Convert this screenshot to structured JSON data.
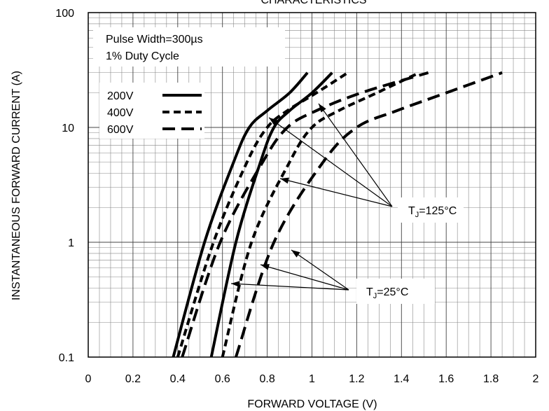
{
  "chart_data": {
    "type": "line",
    "title": "CHARACTERISTICS",
    "xlabel": "FORWARD VOLTAGE (V)",
    "ylabel": "INSTANTANEOUS FORWARD CURRENT (A)",
    "xlim": [
      0,
      2
    ],
    "ylim": [
      0.1,
      100
    ],
    "y_scale": "log",
    "grid": true,
    "x_ticks": [
      "0",
      "0.2",
      "0.4",
      "0.6",
      "0.8",
      "1",
      "1.2",
      "1.4",
      "1.6",
      "1.8",
      "2"
    ],
    "y_ticks": [
      "0.1",
      "1",
      "10",
      "100"
    ],
    "legend_position": "top-left",
    "annotations": {
      "pulse_width": "Pulse Width=300µs",
      "duty_cycle": "1% Duty Cycle",
      "tj_high": "=125°C",
      "tj_low": "=25°C",
      "tj_symbol": "T",
      "tj_subscript": "J"
    },
    "series": [
      {
        "name": "200V",
        "style": "solid",
        "condition": "TJ=125°C",
        "x": [
          0.38,
          0.52,
          0.65,
          0.72,
          0.8,
          0.9,
          0.98
        ],
        "y": [
          0.1,
          1,
          5,
          10,
          14,
          20,
          30
        ]
      },
      {
        "name": "200V",
        "style": "solid",
        "condition": "TJ=25°C",
        "x": [
          0.55,
          0.66,
          0.77,
          0.83,
          0.9,
          1.0,
          1.09
        ],
        "y": [
          0.1,
          1,
          5,
          10,
          14,
          20,
          30
        ]
      },
      {
        "name": "400V",
        "style": "short-dash",
        "condition": "TJ=125°C",
        "x": [
          0.4,
          0.56,
          0.71,
          0.8,
          0.89,
          1.02,
          1.16
        ],
        "y": [
          0.1,
          1,
          5,
          10,
          14,
          20,
          30
        ]
      },
      {
        "name": "400V",
        "style": "short-dash",
        "condition": "TJ=25°C",
        "x": [
          0.6,
          0.73,
          0.9,
          1.0,
          1.12,
          1.29,
          1.48
        ],
        "y": [
          0.1,
          1,
          5,
          10,
          14,
          20,
          30
        ]
      },
      {
        "name": "600V",
        "style": "long-dash",
        "condition": "TJ=125°C",
        "x": [
          0.42,
          0.59,
          0.78,
          0.89,
          1.02,
          1.22,
          1.52
        ],
        "y": [
          0.1,
          1,
          5,
          10,
          14,
          20,
          30
        ]
      },
      {
        "name": "600V",
        "style": "long-dash",
        "condition": "TJ=25°C",
        "x": [
          0.66,
          0.83,
          1.05,
          1.2,
          1.38,
          1.6,
          1.85
        ],
        "y": [
          0.1,
          1,
          5,
          10,
          14,
          20,
          30
        ]
      }
    ],
    "legend": [
      {
        "label": "200V",
        "style": "solid"
      },
      {
        "label": "400V",
        "style": "short-dash"
      },
      {
        "label": "600V",
        "style": "long-dash"
      }
    ]
  }
}
